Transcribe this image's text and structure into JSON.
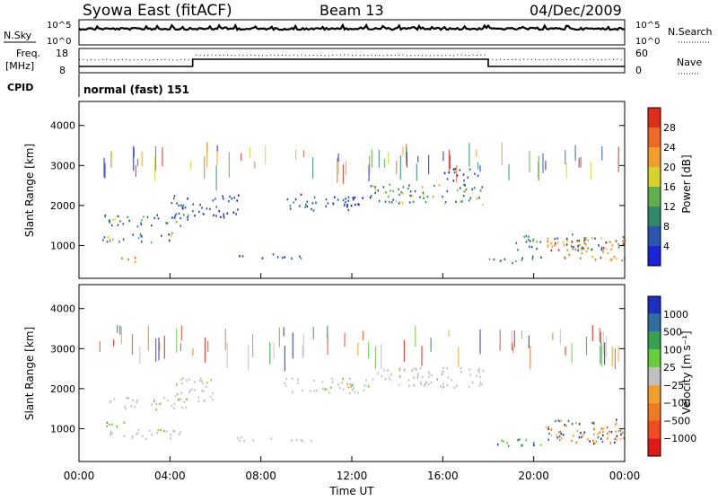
{
  "header": {
    "title": "Syowa East (fitACF)",
    "beam": "Beam 13",
    "date": "04/Dec/2009"
  },
  "top_panel": {
    "left_label": "N.Sky",
    "right_label": "N.Search",
    "left_ticks": [
      "10^5",
      "10^0"
    ],
    "right_ticks": [
      "10^5",
      "10^0"
    ]
  },
  "freq_panel": {
    "left_label_line1": "Freq.",
    "left_label_line2": "[MHz]",
    "left_ticks": [
      "18",
      "8"
    ],
    "right_ticks": [
      "60",
      "0"
    ],
    "right_label": "Nave"
  },
  "cpid": {
    "label": "CPID",
    "mode": "normal (fast) 151"
  },
  "chart_data": [
    {
      "type": "heatmap",
      "name": "power",
      "ylabel": "Slant Range [km]",
      "ylim": [
        180,
        4600
      ],
      "yticks": [
        "1000",
        "2000",
        "3000",
        "4000"
      ],
      "xlim": [
        0,
        24
      ],
      "colorbar_label": "Power [dB]",
      "colorbar_ticks": [
        "4",
        "8",
        "12",
        "16",
        "20",
        "24",
        "28"
      ],
      "colorbar_colors": [
        "#1c22d8",
        "#2a56b0",
        "#2e8a6a",
        "#5fb04c",
        "#d8d22a",
        "#f0a028",
        "#ee6a22",
        "#e02c1a"
      ],
      "regions": [
        {
          "t": [
            1.0,
            4.9
          ],
          "r": [
            1500,
            1800
          ],
          "level": "mixed-low"
        },
        {
          "t": [
            1.0,
            4.2
          ],
          "r": [
            1100,
            1350
          ],
          "level": "mixed-mid"
        },
        {
          "t": [
            1.5,
            3.0
          ],
          "r": [
            620,
            720
          ],
          "level": "high"
        },
        {
          "t": [
            4.0,
            7.0
          ],
          "r": [
            1700,
            2300
          ],
          "level": "low"
        },
        {
          "t": [
            9.0,
            12.8
          ],
          "r": [
            1900,
            2300
          ],
          "level": "low"
        },
        {
          "t": [
            12.8,
            17.8
          ],
          "r": [
            2050,
            2550
          ],
          "level": "mixed-mid"
        },
        {
          "t": [
            16.0,
            17.6
          ],
          "r": [
            2600,
            2950
          ],
          "level": "low"
        },
        {
          "t": [
            6.9,
            10.2
          ],
          "r": [
            700,
            820
          ],
          "level": "low"
        },
        {
          "t": [
            18.0,
            20.5
          ],
          "r": [
            580,
            760
          ],
          "level": "mid"
        },
        {
          "t": [
            20.5,
            24.0
          ],
          "r": [
            650,
            1200
          ],
          "level": "high"
        },
        {
          "t": [
            19.2,
            24.0
          ],
          "r": [
            900,
            1300
          ],
          "level": "mixed-mid"
        }
      ]
    },
    {
      "type": "heatmap",
      "name": "velocity",
      "ylabel": "Slant Range [km]",
      "ylim": [
        180,
        4600
      ],
      "yticks": [
        "1000",
        "2000",
        "3000",
        "4000"
      ],
      "xlim": [
        0,
        24
      ],
      "xticks": [
        "00:00",
        "04:00",
        "08:00",
        "12:00",
        "16:00",
        "20:00",
        "00:00"
      ],
      "xlabel": "Time UT",
      "colorbar_label": "Velocity [m s⁻¹]",
      "colorbar_ticks": [
        "1000",
        "500",
        "100",
        "25",
        "−25",
        "−100",
        "−500",
        "−1000"
      ],
      "colorbar_colors": [
        "#1c30c0",
        "#2e6ea0",
        "#38a050",
        "#66cc3a",
        "#c0c0c0",
        "#f0a028",
        "#ee7a22",
        "#f04a20",
        "#e01818"
      ],
      "regions": [
        {
          "t": [
            1.0,
            4.9
          ],
          "r": [
            1500,
            1800
          ],
          "level": "ground"
        },
        {
          "t": [
            1.0,
            4.5
          ],
          "r": [
            750,
            1000
          ],
          "level": "ground"
        },
        {
          "t": [
            0.9,
            2.0
          ],
          "r": [
            1000,
            1200
          ],
          "level": "pos-low"
        },
        {
          "t": [
            4.2,
            6.0
          ],
          "r": [
            1700,
            2300
          ],
          "level": "ground"
        },
        {
          "t": [
            12.8,
            17.8
          ],
          "r": [
            2050,
            2550
          ],
          "level": "ground"
        },
        {
          "t": [
            9.0,
            12.8
          ],
          "r": [
            1900,
            2300
          ],
          "level": "ground"
        },
        {
          "t": [
            6.9,
            10.2
          ],
          "r": [
            700,
            820
          ],
          "level": "ground"
        },
        {
          "t": [
            18.0,
            20.5
          ],
          "r": [
            580,
            760
          ],
          "level": "pos-mid"
        },
        {
          "t": [
            20.5,
            24.0
          ],
          "r": [
            650,
            1250
          ],
          "level": "mixed-vel"
        },
        {
          "t": [
            22.5,
            24.0
          ],
          "r": [
            650,
            1100
          ],
          "level": "neg"
        }
      ]
    }
  ]
}
